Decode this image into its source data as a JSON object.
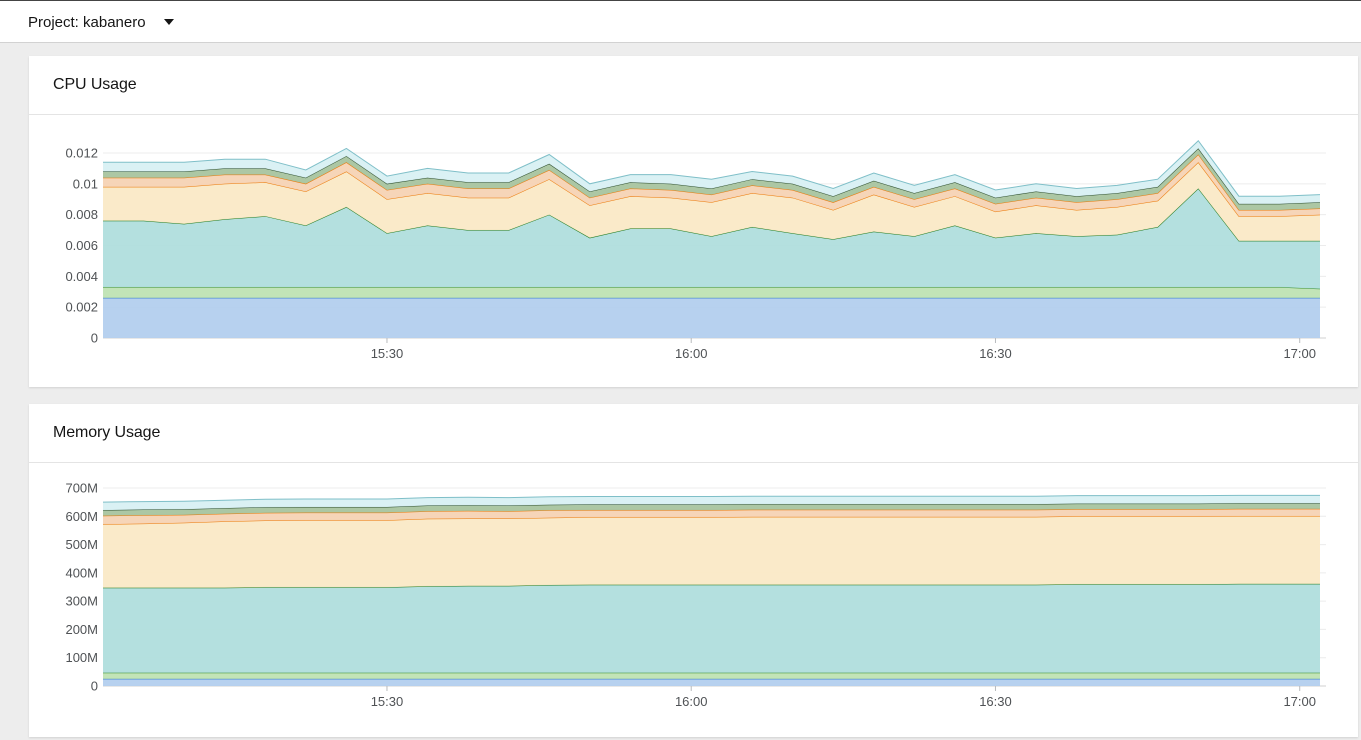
{
  "header": {
    "project_label": "Project: kabanero"
  },
  "colors": {
    "blue": "#b3cfee",
    "blue_line": "#2b72c8",
    "lightgreen": "#bfe3b3",
    "lightgreen_line": "#3d8f2e",
    "teal": "#b0dedd",
    "teal_line": "#1f7a1f",
    "yellow": "#fae9c6",
    "orange_line": "#ec7a08",
    "peach": "#f6d3b4",
    "darkgreen": "#a8c49f",
    "cyan": "#d8f0f3"
  },
  "chart_data": [
    {
      "type": "area",
      "stacked": true,
      "title": "CPU Usage",
      "xlabel": "",
      "ylabel": "",
      "x_ticks": [
        "15:30",
        "16:00",
        "16:30",
        "17:00"
      ],
      "y_ticks": [
        "0",
        "0.002",
        "0.004",
        "0.006",
        "0.008",
        "0.01",
        "0.012"
      ],
      "xlim": [
        "15:02",
        "17:02"
      ],
      "ylim": [
        0,
        0.012
      ],
      "grid": true,
      "x": [
        "15:02",
        "15:06",
        "15:10",
        "15:14",
        "15:18",
        "15:22",
        "15:26",
        "15:30",
        "15:34",
        "15:38",
        "15:42",
        "15:46",
        "15:50",
        "15:54",
        "15:58",
        "16:02",
        "16:06",
        "16:10",
        "16:14",
        "16:18",
        "16:22",
        "16:26",
        "16:30",
        "16:34",
        "16:38",
        "16:42",
        "16:46",
        "16:50",
        "16:54",
        "16:58",
        "17:02"
      ],
      "series": [
        {
          "values": [
            0.0026,
            0.0026,
            0.0026,
            0.0026,
            0.0026,
            0.0026,
            0.0026,
            0.0026,
            0.0026,
            0.0026,
            0.0026,
            0.0026,
            0.0026,
            0.0026,
            0.0026,
            0.0026,
            0.0026,
            0.0026,
            0.0026,
            0.0026,
            0.0026,
            0.0026,
            0.0026,
            0.0026,
            0.0026,
            0.0026,
            0.0026,
            0.0026,
            0.0026,
            0.0026,
            0.0026
          ]
        },
        {
          "values": [
            0.0007,
            0.0007,
            0.0007,
            0.0007,
            0.0007,
            0.0007,
            0.0007,
            0.0007,
            0.0007,
            0.0007,
            0.0007,
            0.0007,
            0.0007,
            0.0007,
            0.0007,
            0.0007,
            0.0007,
            0.0007,
            0.0007,
            0.0007,
            0.0007,
            0.0007,
            0.0007,
            0.0007,
            0.0007,
            0.0007,
            0.0007,
            0.0007,
            0.0007,
            0.0007,
            0.0006
          ]
        },
        {
          "values": [
            0.0043,
            0.0043,
            0.0041,
            0.0044,
            0.0046,
            0.004,
            0.0052,
            0.0035,
            0.004,
            0.0037,
            0.0037,
            0.0047,
            0.0032,
            0.0038,
            0.0038,
            0.0033,
            0.0039,
            0.0035,
            0.0031,
            0.0036,
            0.0033,
            0.004,
            0.0032,
            0.0035,
            0.0033,
            0.0034,
            0.0039,
            0.0064,
            0.003,
            0.003,
            0.0031
          ]
        },
        {
          "values": [
            0.0022,
            0.0022,
            0.0024,
            0.0023,
            0.0022,
            0.0022,
            0.0023,
            0.0022,
            0.0021,
            0.0021,
            0.0021,
            0.0023,
            0.0021,
            0.0021,
            0.002,
            0.0022,
            0.0022,
            0.0023,
            0.0019,
            0.0024,
            0.0019,
            0.0019,
            0.0017,
            0.0018,
            0.0017,
            0.0018,
            0.0017,
            0.0017,
            0.0016,
            0.0016,
            0.0017
          ]
        },
        {
          "values": [
            0.0006,
            0.0006,
            0.0006,
            0.0006,
            0.0005,
            0.0005,
            0.0006,
            0.0006,
            0.0006,
            0.0006,
            0.0006,
            0.0006,
            0.0005,
            0.0005,
            0.0005,
            0.0005,
            0.0005,
            0.0005,
            0.0005,
            0.0005,
            0.0005,
            0.0005,
            0.0005,
            0.0005,
            0.0005,
            0.0005,
            0.0005,
            0.0005,
            0.0004,
            0.0004,
            0.0004
          ]
        },
        {
          "values": [
            0.0004,
            0.0004,
            0.0004,
            0.0004,
            0.0004,
            0.0004,
            0.0004,
            0.0004,
            0.0004,
            0.0004,
            0.0004,
            0.0004,
            0.0004,
            0.0004,
            0.0004,
            0.0004,
            0.0004,
            0.0004,
            0.0004,
            0.0004,
            0.0004,
            0.0004,
            0.0004,
            0.0004,
            0.0004,
            0.0004,
            0.0004,
            0.0004,
            0.0004,
            0.0004,
            0.0004
          ]
        },
        {
          "values": [
            0.0006,
            0.0006,
            0.0006,
            0.0006,
            0.0006,
            0.0005,
            0.0005,
            0.0005,
            0.0006,
            0.0006,
            0.0006,
            0.0006,
            0.0005,
            0.0005,
            0.0006,
            0.0006,
            0.0005,
            0.0005,
            0.0005,
            0.0005,
            0.0005,
            0.0005,
            0.0005,
            0.0005,
            0.0005,
            0.0005,
            0.0005,
            0.0005,
            0.0005,
            0.0005,
            0.0005
          ]
        }
      ]
    },
    {
      "type": "area",
      "stacked": true,
      "title": "Memory Usage",
      "xlabel": "",
      "ylabel": "",
      "x_ticks": [
        "15:30",
        "16:00",
        "16:30",
        "17:00"
      ],
      "y_ticks": [
        "0",
        "100M",
        "200M",
        "300M",
        "400M",
        "500M",
        "600M",
        "700M"
      ],
      "xlim": [
        "15:02",
        "17:02"
      ],
      "ylim": [
        0,
        700
      ],
      "grid": true,
      "x": [
        "15:02",
        "15:06",
        "15:10",
        "15:14",
        "15:18",
        "15:22",
        "15:26",
        "15:30",
        "15:34",
        "15:38",
        "15:42",
        "15:46",
        "15:50",
        "15:54",
        "15:58",
        "16:02",
        "16:06",
        "16:10",
        "16:14",
        "16:18",
        "16:22",
        "16:26",
        "16:30",
        "16:34",
        "16:38",
        "16:42",
        "16:46",
        "16:50",
        "16:54",
        "16:58",
        "17:02"
      ],
      "series": [
        {
          "values": [
            25,
            25,
            25,
            25,
            25,
            25,
            25,
            25,
            25,
            25,
            25,
            25,
            25,
            25,
            25,
            25,
            25,
            25,
            25,
            25,
            25,
            25,
            25,
            25,
            25,
            25,
            25,
            25,
            25,
            25,
            25
          ]
        },
        {
          "values": [
            22,
            22,
            22,
            22,
            22,
            22,
            22,
            22,
            22,
            22,
            22,
            22,
            22,
            22,
            22,
            22,
            22,
            22,
            22,
            22,
            22,
            22,
            22,
            22,
            22,
            22,
            22,
            22,
            22,
            22,
            22
          ]
        },
        {
          "values": [
            300,
            300,
            300,
            300,
            302,
            302,
            302,
            302,
            306,
            307,
            307,
            310,
            311,
            311,
            311,
            311,
            311,
            311,
            311,
            311,
            311,
            311,
            311,
            311,
            313,
            313,
            313,
            313,
            314,
            314,
            314
          ]
        },
        {
          "values": [
            225,
            227,
            230,
            235,
            236,
            237,
            237,
            237,
            238,
            238,
            238,
            238,
            239,
            239,
            239,
            239,
            240,
            240,
            240,
            240,
            240,
            240,
            240,
            240,
            240,
            240,
            240,
            240,
            240,
            240,
            240
          ]
        },
        {
          "values": [
            30,
            30,
            28,
            27,
            27,
            27,
            27,
            27,
            27,
            27,
            26,
            26,
            25,
            25,
            25,
            25,
            25,
            25,
            25,
            25,
            25,
            25,
            25,
            25,
            25,
            25,
            25,
            25,
            25,
            25,
            25
          ]
        },
        {
          "values": [
            20,
            20,
            20,
            20,
            20,
            20,
            20,
            20,
            20,
            20,
            20,
            20,
            20,
            20,
            20,
            20,
            20,
            20,
            20,
            20,
            20,
            20,
            20,
            20,
            20,
            20,
            20,
            20,
            20,
            20,
            20
          ]
        },
        {
          "values": [
            28,
            28,
            28,
            28,
            28,
            28,
            28,
            28,
            28,
            28,
            28,
            28,
            28,
            28,
            28,
            28,
            28,
            28,
            28,
            28,
            28,
            28,
            28,
            28,
            28,
            28,
            28,
            28,
            28,
            28,
            28
          ]
        }
      ]
    }
  ]
}
